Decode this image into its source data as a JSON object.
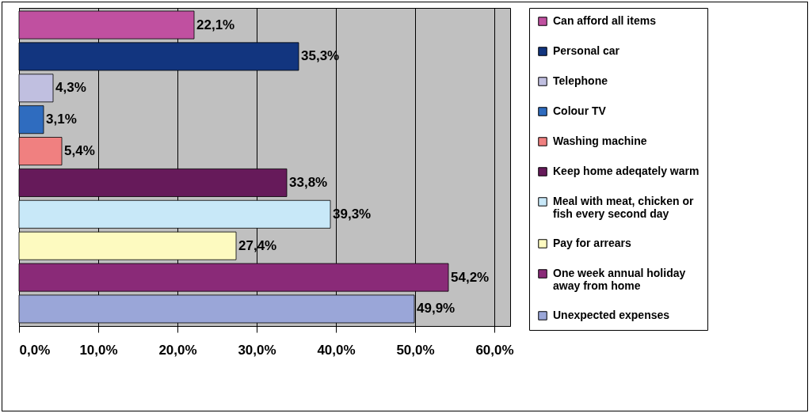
{
  "chart_data": {
    "type": "bar",
    "orientation": "horizontal",
    "categories": [
      null,
      null,
      null,
      null,
      null,
      null,
      null,
      null,
      null,
      null
    ],
    "series": [
      {
        "name": "Can afford all items",
        "color": "#c050a0",
        "values": [
          22.1,
          null,
          null,
          null,
          null,
          null,
          null,
          null,
          null,
          null
        ],
        "value_labels": [
          "22,1%",
          null,
          null,
          null,
          null,
          null,
          null,
          null,
          null,
          null
        ]
      },
      {
        "name": "Personal car",
        "color": "#12357f",
        "values": [
          null,
          35.3,
          null,
          null,
          null,
          null,
          null,
          null,
          null,
          null
        ],
        "value_labels": [
          null,
          "35,3%",
          null,
          null,
          null,
          null,
          null,
          null,
          null,
          null
        ]
      },
      {
        "name": "Telephone",
        "color": "#c0bfe0",
        "values": [
          null,
          null,
          4.3,
          null,
          null,
          null,
          null,
          null,
          null,
          null
        ],
        "value_labels": [
          null,
          null,
          "4,3%",
          null,
          null,
          null,
          null,
          null,
          null,
          null
        ]
      },
      {
        "name": "Colour TV",
        "color": "#2f6cbf",
        "values": [
          null,
          null,
          null,
          3.1,
          null,
          null,
          null,
          null,
          null,
          null
        ],
        "value_labels": [
          null,
          null,
          null,
          "3,1%",
          null,
          null,
          null,
          null,
          null,
          null
        ]
      },
      {
        "name": "Washing machine",
        "color": "#f08080",
        "values": [
          null,
          null,
          null,
          null,
          5.4,
          null,
          null,
          null,
          null,
          null
        ],
        "value_labels": [
          null,
          null,
          null,
          null,
          "5,4%",
          null,
          null,
          null,
          null,
          null
        ]
      },
      {
        "name": "Keep home adeqately warm",
        "color": "#661a5a",
        "values": [
          null,
          null,
          null,
          null,
          null,
          33.8,
          null,
          null,
          null,
          null
        ],
        "value_labels": [
          null,
          null,
          null,
          null,
          null,
          "33,8%",
          null,
          null,
          null,
          null
        ]
      },
      {
        "name": "Meal with meat, chicken or fish every second day",
        "color": "#c8e8f8",
        "values": [
          null,
          null,
          null,
          null,
          null,
          null,
          39.3,
          null,
          null,
          null
        ],
        "value_labels": [
          null,
          null,
          null,
          null,
          null,
          null,
          "39,3%",
          null,
          null,
          null
        ]
      },
      {
        "name": "Pay for arrears",
        "color": "#fdfac0",
        "values": [
          null,
          null,
          null,
          null,
          null,
          null,
          null,
          27.4,
          null,
          null
        ],
        "value_labels": [
          null,
          null,
          null,
          null,
          null,
          null,
          null,
          "27,4%",
          null,
          null
        ]
      },
      {
        "name": "One week annual holiday away from home",
        "color": "#8a2a78",
        "values": [
          null,
          null,
          null,
          null,
          null,
          null,
          null,
          null,
          54.2,
          null
        ],
        "value_labels": [
          null,
          null,
          null,
          null,
          null,
          null,
          null,
          null,
          "54,2%",
          null
        ]
      },
      {
        "name": "Unexpected expenses",
        "color": "#9aa6d8",
        "values": [
          null,
          null,
          null,
          null,
          null,
          null,
          null,
          null,
          null,
          49.9
        ],
        "value_labels": [
          null,
          null,
          null,
          null,
          null,
          null,
          null,
          null,
          null,
          "49,9%"
        ]
      }
    ],
    "xlim": [
      0,
      62
    ],
    "xticks": [
      {
        "value": 0,
        "label": "0,0%"
      },
      {
        "value": 10,
        "label": "10,0%"
      },
      {
        "value": 20,
        "label": "20,0%"
      },
      {
        "value": 30,
        "label": "30,0%"
      },
      {
        "value": 40,
        "label": "40,0%"
      },
      {
        "value": 50,
        "label": "50,0%"
      },
      {
        "value": 60,
        "label": "60,0%"
      }
    ],
    "grid": "x",
    "legend": "right",
    "tick_labels": "x"
  }
}
